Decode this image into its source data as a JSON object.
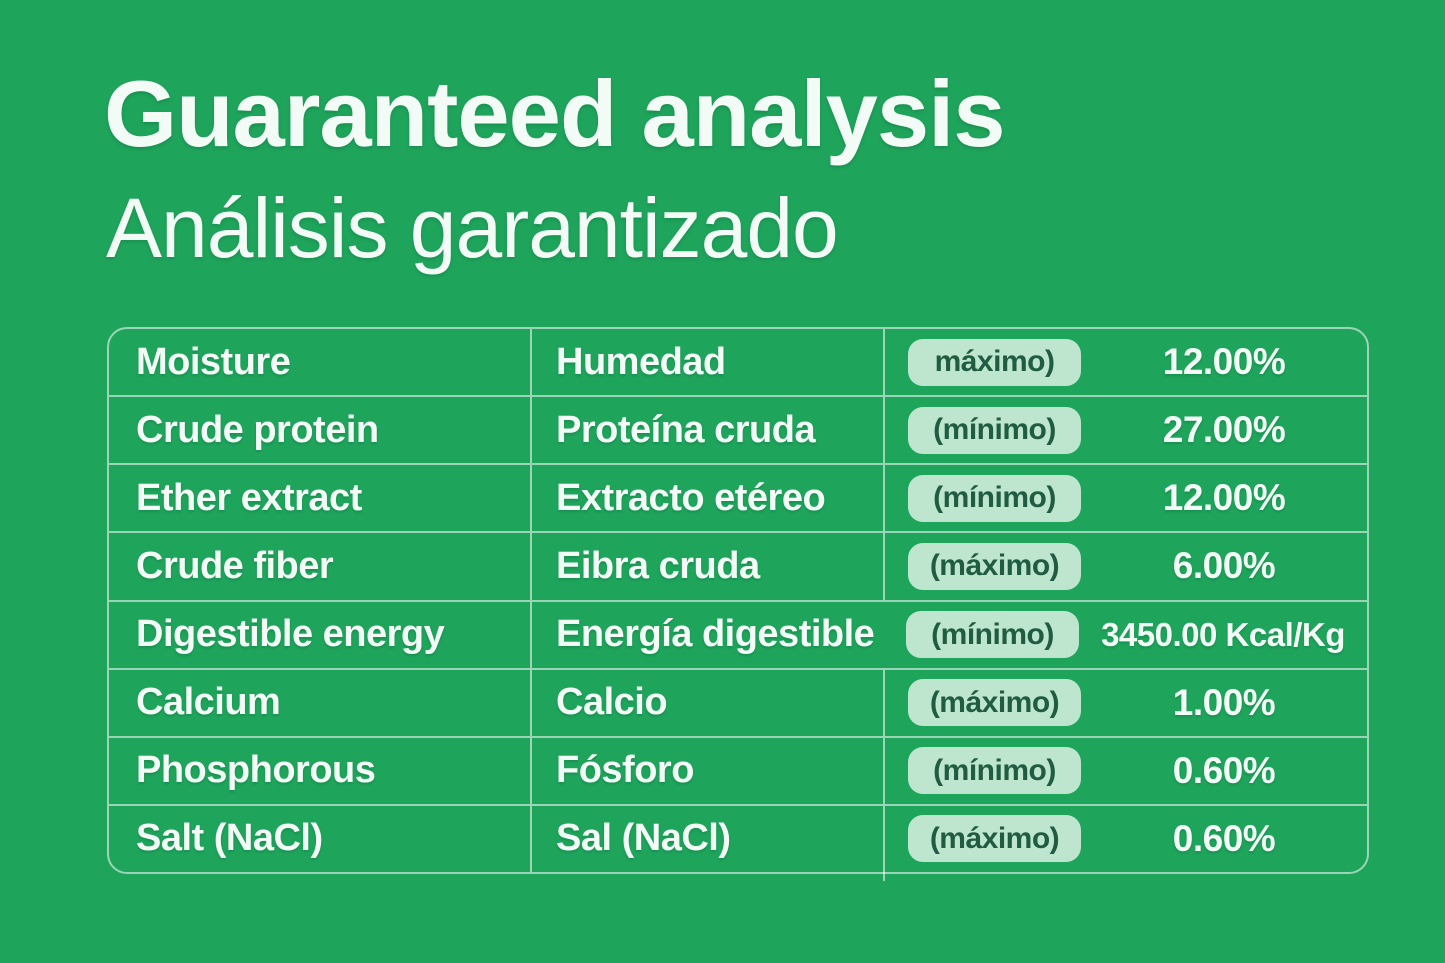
{
  "header": {
    "title_en": "Guaranteed analysis",
    "title_es": "Análisis garantizado"
  },
  "colors": {
    "background": "#1FA45C",
    "line": "rgba(255,255,255,0.55)",
    "text": "#F2FBF6",
    "badge_bg": "#BEE5CE",
    "badge_text": "#1F5C42"
  },
  "table": {
    "rows": [
      {
        "en": "Moisture",
        "es": "Humedad",
        "limit": "máximo)",
        "value": "12.00%"
      },
      {
        "en": "Crude protein",
        "es": "Proteína cruda",
        "limit": "(mínimo)",
        "value": "27.00%"
      },
      {
        "en": "Ether extract",
        "es": "Extracto etéreo",
        "limit": "(mínimo)",
        "value": "12.00%"
      },
      {
        "en": "Crude fiber",
        "es": "Eibra cruda",
        "limit": "(máximo)",
        "value": "6.00%"
      },
      {
        "en": "Digestible energy",
        "es": "Energía digestible",
        "limit": "(mínimo)",
        "value": "3450.00 Kcal/Kg"
      },
      {
        "en": "Calcium",
        "es": "Calcio",
        "limit": "(máximo)",
        "value": "1.00%"
      },
      {
        "en": "Phosphorous",
        "es": "Fósforo",
        "limit": "(mínimo)",
        "value": "0.60%"
      },
      {
        "en": "Salt (NaCl)",
        "es": "Sal (NaCl)",
        "limit": "(máximo)",
        "value": "0.60%"
      }
    ]
  }
}
